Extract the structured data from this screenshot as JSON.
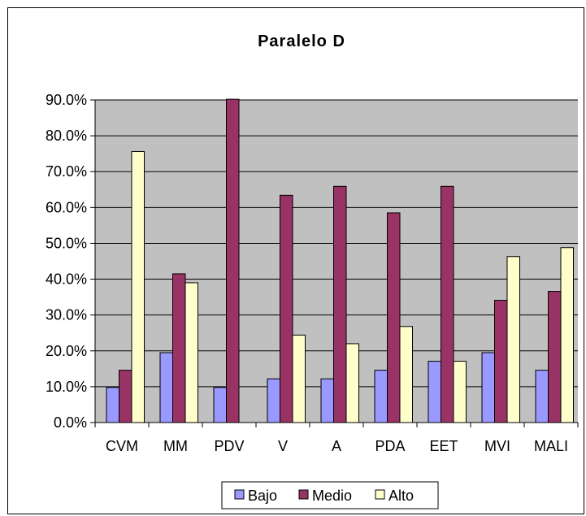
{
  "chart_data": {
    "type": "bar",
    "title": "Paralelo D",
    "xlabel": "",
    "ylabel": "",
    "categories": [
      "CVM",
      "MM",
      "PDV",
      "V",
      "A",
      "PDA",
      "EET",
      "MVI",
      "MALI"
    ],
    "series": [
      {
        "name": "Bajo",
        "color": "#9999FF",
        "values": [
          9.8,
          19.5,
          9.8,
          12.2,
          12.2,
          14.6,
          17.1,
          19.5,
          14.6
        ]
      },
      {
        "name": "Medio",
        "color": "#993366",
        "values": [
          14.6,
          41.5,
          90.2,
          63.4,
          65.9,
          58.5,
          65.9,
          34.1,
          36.6
        ]
      },
      {
        "name": "Alto",
        "color": "#FFFFCC",
        "values": [
          75.6,
          39.0,
          0.0,
          24.4,
          22.0,
          26.8,
          17.1,
          46.3,
          48.8
        ]
      }
    ],
    "ylim": [
      0,
      90
    ],
    "yticks": [
      "0.0%",
      "10.0%",
      "20.0%",
      "30.0%",
      "40.0%",
      "50.0%",
      "60.0%",
      "70.0%",
      "80.0%",
      "90.0%"
    ],
    "grid": true,
    "plot_background": "#C0C0C0",
    "legend_position": "bottom"
  }
}
